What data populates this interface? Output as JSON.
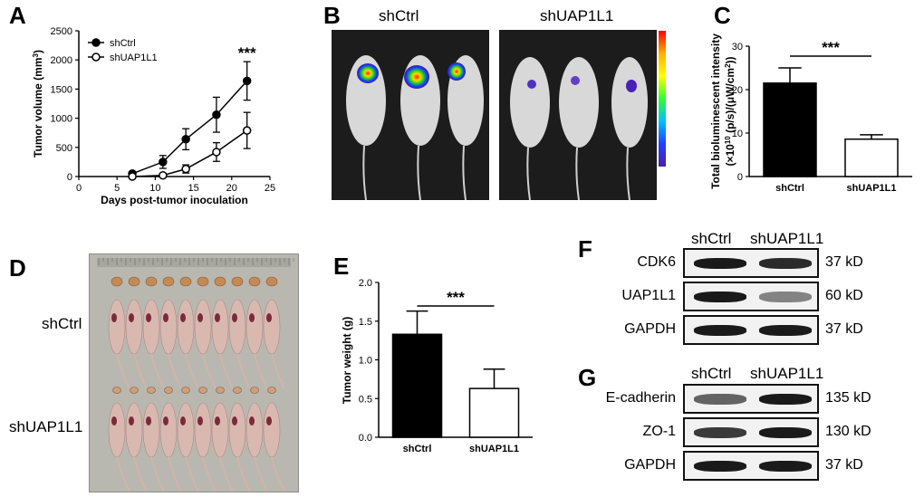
{
  "panels": {
    "A": "A",
    "B": "B",
    "C": "C",
    "D": "D",
    "E": "E",
    "F": "F",
    "G": "G"
  },
  "chart_data": [
    {
      "id": "A",
      "type": "line",
      "title": "",
      "xlabel": "Days post-tumor inoculation",
      "ylabel": "Tumor volume (mm",
      "ylabel_sup": "3",
      "ylabel_end": ")",
      "xlim": [
        0,
        25
      ],
      "ylim": [
        0,
        2500
      ],
      "xticks": [
        0,
        5,
        10,
        15,
        20,
        25
      ],
      "yticks": [
        0,
        500,
        1000,
        1500,
        2000,
        2500
      ],
      "series": [
        {
          "name": "shCtrl",
          "marker": "filled",
          "x": [
            7,
            11,
            14,
            18,
            22
          ],
          "y": [
            50,
            250,
            640,
            1060,
            1640
          ],
          "err": [
            30,
            110,
            180,
            300,
            330
          ]
        },
        {
          "name": "shUAP1L1",
          "marker": "open",
          "x": [
            7,
            11,
            14,
            18,
            22
          ],
          "y": [
            0,
            20,
            130,
            420,
            790
          ],
          "err": [
            10,
            30,
            70,
            160,
            310
          ]
        }
      ],
      "annotation": "***"
    },
    {
      "id": "C",
      "type": "bar",
      "categories": [
        "shCtrl",
        "shUAP1L1"
      ],
      "values": [
        21.5,
        8.6
      ],
      "err": [
        3.5,
        1.0
      ],
      "fills": [
        "#000000",
        "#ffffff"
      ],
      "ylim": [
        0,
        30
      ],
      "yticks": [
        0,
        10,
        20,
        30
      ],
      "ylabel_line1": "Total bioluminescent intensity",
      "ylabel_line2": "(×10",
      "ylabel_sup1": "10",
      "ylabel_mid": " (p/s)/(μW/cm",
      "ylabel_sup2": "2",
      "ylabel_end": "))",
      "xlabel": "",
      "annotation": "***"
    },
    {
      "id": "E",
      "type": "bar",
      "categories": [
        "shCtrl",
        "shUAP1L1"
      ],
      "values": [
        1.33,
        0.63
      ],
      "err": [
        0.3,
        0.25
      ],
      "fills": [
        "#000000",
        "#ffffff"
      ],
      "ylim": [
        0,
        2.0
      ],
      "yticks": [
        "0.0",
        "0.5",
        "1.0",
        "1.5",
        "2.0"
      ],
      "ylabel": "Tumor weight (g)",
      "xlabel": "",
      "annotation": "***"
    }
  ],
  "imaging": {
    "left_title": "shCtrl",
    "right_title": "shUAP1L1"
  },
  "photo": {
    "row1_label": "shCtrl",
    "row2_label": "shUAP1L1"
  },
  "blotF": {
    "columns": [
      "shCtrl",
      "shUAP1L1"
    ],
    "rows": [
      {
        "label": "CDK6",
        "kd": "37 kD",
        "intensity": [
          1.0,
          0.9
        ]
      },
      {
        "label": "UAP1L1",
        "kd": "60 kD",
        "intensity": [
          1.0,
          0.35
        ]
      },
      {
        "label": "GAPDH",
        "kd": "37 kD",
        "intensity": [
          1.0,
          1.0
        ]
      }
    ]
  },
  "blotG": {
    "columns": [
      "shCtrl",
      "shUAP1L1"
    ],
    "rows": [
      {
        "label": "E-cadherin",
        "kd": "135 kD",
        "intensity": [
          0.55,
          1.0
        ]
      },
      {
        "label": "ZO-1",
        "kd": "130 kD",
        "intensity": [
          0.8,
          1.0
        ]
      },
      {
        "label": "GAPDH",
        "kd": "37 kD",
        "intensity": [
          1.0,
          1.0
        ]
      }
    ]
  },
  "colors": {
    "bar_dark": "#000000",
    "bar_light": "#ffffff",
    "band": "#1a1a1a",
    "blot_bg": "#f2f2f2"
  }
}
